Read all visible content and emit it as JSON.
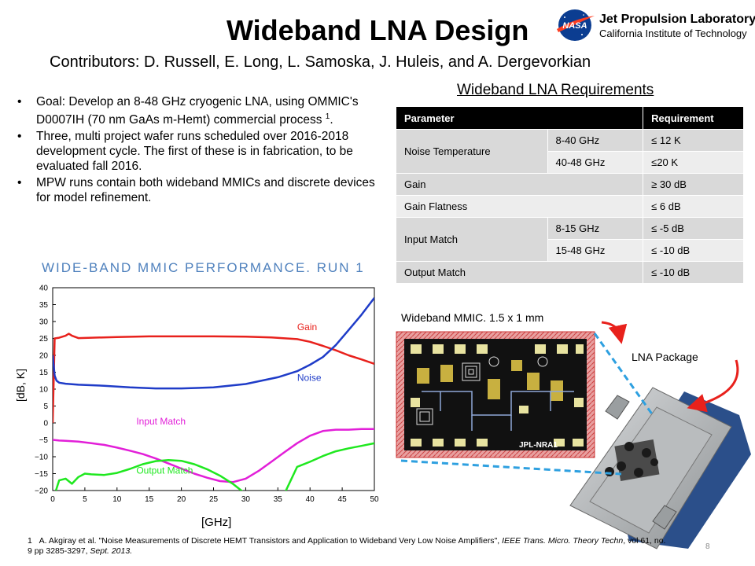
{
  "title": "Wideband LNA Design",
  "logo": {
    "meatball_text": "NASA",
    "name": "Jet Propulsion Laboratory",
    "subtitle": "California Institute of Technology"
  },
  "contributors": "Contributors: D. Russell, E. Long, L. Samoska, J. Huleis, and A. Dergevorkian",
  "bullets": [
    {
      "text": "Goal: Develop an 8-48 GHz cryogenic LNA, using OMMIC's D0007IH (70 nm GaAs m-Hemt) commercial process ",
      "sup": "1",
      "suffix": "."
    },
    {
      "text": "Three, multi project wafer runs scheduled over 2016-2018 development cycle. The first of these is in fabrication, to be evaluated fall 2016."
    },
    {
      "text": "MPW runs contain both wideband MMICs and discrete devices for model refinement."
    }
  ],
  "requirements": {
    "title": "Wideband LNA Requirements",
    "headers": [
      "Parameter",
      "Requirement"
    ],
    "noise_temp": {
      "label": "Noise Temperature",
      "band1": "8-40 GHz",
      "req1": "≤ 12 K",
      "band2": "40-48 GHz",
      "req2": "≤20 K"
    },
    "gain": {
      "label": "Gain",
      "req": "≥ 30 dB"
    },
    "flatness": {
      "label": "Gain Flatness",
      "req": "≤ 6 dB"
    },
    "input_match": {
      "label": "Input Match",
      "band1": "8-15 GHz",
      "req1": "≤ -5 dB",
      "band2": "15-48 GHz",
      "req2": "≤ -10 dB"
    },
    "output_match": {
      "label": "Output Match",
      "req": "≤ -10 dB"
    }
  },
  "plot_title": "WIDE-BAND MMIC PERFORMANCE. RUN 1",
  "chart_data": {
    "type": "line",
    "title": "WIDE-BAND MMIC PERFORMANCE. RUN 1",
    "xlabel": "[GHz]",
    "ylabel": "[dB, K]",
    "xlim": [
      0,
      50
    ],
    "ylim": [
      -20,
      40
    ],
    "xticks": [
      0,
      5,
      10,
      15,
      20,
      25,
      30,
      35,
      40,
      45,
      50
    ],
    "yticks": [
      40,
      35,
      30,
      25,
      20,
      15,
      10,
      5,
      0,
      -5,
      -10,
      -15,
      -20
    ],
    "grid": false,
    "series": [
      {
        "name": "Gain",
        "color": "#e8211c",
        "x": [
          0,
          0.3,
          1,
          2,
          2.5,
          3,
          4,
          6,
          10,
          15,
          20,
          25,
          30,
          34,
          38,
          40,
          42,
          44,
          46,
          48,
          50
        ],
        "y": [
          0,
          25,
          25.2,
          25.8,
          26.4,
          25.8,
          25.1,
          25.2,
          25.4,
          25.6,
          25.6,
          25.6,
          25.5,
          25.3,
          24.8,
          24,
          22.8,
          21.5,
          20,
          18.8,
          17.5
        ]
      },
      {
        "name": "Noise",
        "color": "#1f3cc8",
        "x": [
          0,
          0.3,
          0.6,
          1,
          2,
          4,
          8,
          12,
          16,
          20,
          25,
          30,
          35,
          38,
          40,
          42,
          44,
          46,
          48,
          50
        ],
        "y": [
          20,
          14,
          12.5,
          11.9,
          11.6,
          11.3,
          11,
          10.5,
          10.2,
          10.2,
          10.5,
          11.5,
          13.5,
          15.3,
          17.2,
          19.5,
          23,
          27.5,
          32,
          37
        ]
      },
      {
        "name": "Input Match",
        "color": "#e21fd8",
        "x": [
          0,
          1,
          2,
          4,
          6,
          8,
          10,
          12,
          14,
          16,
          18,
          20,
          22,
          24,
          26,
          28,
          30,
          32,
          34,
          36,
          38,
          40,
          42,
          44,
          46,
          48,
          50
        ],
        "y": [
          -5,
          -5.2,
          -5.3,
          -5.5,
          -6,
          -6.5,
          -7.3,
          -8.2,
          -9.2,
          -10.5,
          -12,
          -13.5,
          -15,
          -16.2,
          -17.2,
          -17.5,
          -16.5,
          -14.2,
          -11.5,
          -8.7,
          -6,
          -3.8,
          -2.4,
          -2,
          -2,
          -1.8,
          -1.8
        ]
      },
      {
        "name": "Output Match",
        "color": "#1fe81f",
        "x": [
          0.5,
          1,
          2,
          3,
          4,
          5,
          6,
          8,
          10,
          12,
          14,
          16,
          18,
          20,
          22,
          24,
          26,
          28,
          29,
          30,
          36,
          37,
          38,
          40,
          42,
          44,
          46,
          48,
          50
        ],
        "y": [
          -20,
          -17,
          -16.5,
          -18,
          -16,
          -15,
          -15.2,
          -15.4,
          -14.8,
          -13.6,
          -12.2,
          -11.3,
          -11,
          -11.2,
          -12.2,
          -13.7,
          -15.6,
          -18,
          -19.5,
          -21,
          -21,
          -17,
          -13,
          -11.5,
          -9.8,
          -8.4,
          -7.5,
          -6.8,
          -6
        ]
      }
    ]
  },
  "mmic_label": "Wideband MMIC. 1.5 x 1 mm",
  "pkg_label": "LNA Package",
  "chip_text": "JPL-NRA1",
  "footnote": {
    "number": "1",
    "text1": "A. Akgiray et al. \"Noise Measurements of Discrete HEMT Transistors and Application to Wideband Very Low Noise Amplifiers\", ",
    "journal": "IEEE Trans. Micro. Theory Techn",
    "text2": ", vol 61, no. 9 pp 3285-3297, ",
    "date": "Sept. 2013."
  },
  "page_number": "8"
}
